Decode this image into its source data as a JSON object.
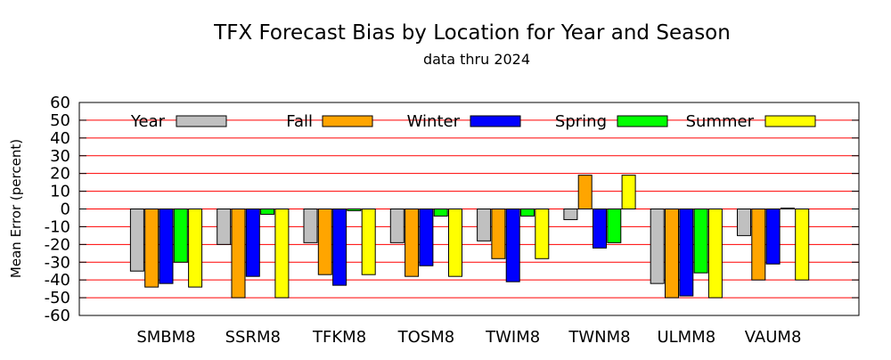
{
  "chart_data": {
    "type": "bar",
    "title": "TFX Forecast Bias by Location for Year and Season",
    "subtitle": "data thru 2024",
    "xlabel": "",
    "ylabel": "Mean Error (percent)",
    "ylim": [
      -60,
      60
    ],
    "yticks": [
      60,
      50,
      40,
      30,
      20,
      10,
      0,
      -10,
      -20,
      -30,
      -40,
      -50,
      -60
    ],
    "grid": "horizontal gridlines every 10, drawn in red",
    "legend_position": "top, inside plot",
    "categories": [
      "SMBM8",
      "SSRM8",
      "TFKM8",
      "TOSM8",
      "TWIM8",
      "TWNM8",
      "ULMM8",
      "VAUM8"
    ],
    "series": [
      {
        "name": "Year",
        "color": "#c0c0c0",
        "values": [
          -35,
          -20,
          -19,
          -19,
          -18,
          -6,
          -42,
          -15
        ]
      },
      {
        "name": "Fall",
        "color": "#ffa500",
        "values": [
          -44,
          -50,
          -37,
          -38,
          -28,
          19,
          -50,
          -40
        ]
      },
      {
        "name": "Winter",
        "color": "#0000ff",
        "values": [
          -42,
          -38,
          -43,
          -32,
          -41,
          -22,
          -49,
          -31
        ]
      },
      {
        "name": "Spring",
        "color": "#00ff00",
        "values": [
          -30,
          -3,
          -1,
          -4,
          -4,
          -19,
          -36,
          0.5
        ]
      },
      {
        "name": "Summer",
        "color": "#ffff00",
        "values": [
          -44,
          -50,
          -37,
          -38,
          -28,
          19,
          -50,
          -40
        ]
      }
    ],
    "colors": {
      "grid": "#ff0000",
      "axes": "#000000",
      "bar_outline": "#000000"
    }
  }
}
